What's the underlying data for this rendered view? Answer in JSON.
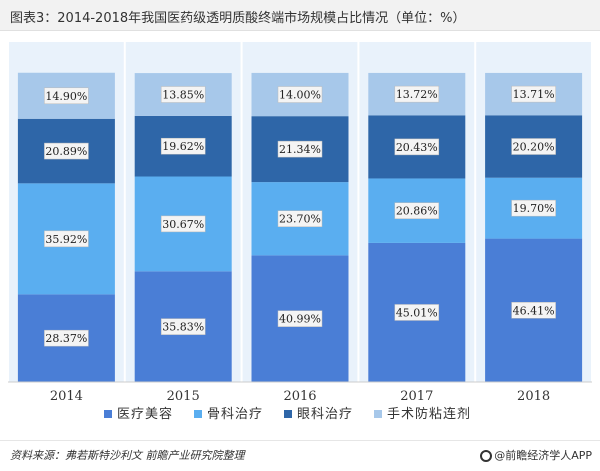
{
  "title": "图表3：2014-2018年我国医药级透明质酸终端市场规模占比情况（单位：%）",
  "source": "资料来源：弗若斯特沙利文 前瞻产业研究院整理",
  "brand": "@前瞻经济学人APP",
  "watermark": "前瞻产业研究院",
  "colors": {
    "医疗美容": "#4a7ed6",
    "骨科治疗": "#5aaef0",
    "眼科治疗": "#2e66a8",
    "手术防粘连剂": "#a7c8ea"
  },
  "chart_data": {
    "type": "bar",
    "stacked": true,
    "percent": true,
    "categories": [
      "2014",
      "2015",
      "2016",
      "2017",
      "2018"
    ],
    "series": [
      {
        "name": "医疗美容",
        "values": [
          28.37,
          35.83,
          40.99,
          45.01,
          46.41
        ]
      },
      {
        "name": "骨科治疗",
        "values": [
          35.92,
          30.67,
          23.7,
          20.86,
          19.7
        ]
      },
      {
        "name": "眼科治疗",
        "values": [
          20.89,
          19.62,
          21.34,
          20.43,
          20.2
        ]
      },
      {
        "name": "手术防粘连剂",
        "values": [
          14.9,
          13.85,
          14.0,
          13.72,
          13.71
        ]
      }
    ],
    "data_labels": [
      [
        "28.37%",
        "35.83%",
        "40.99%",
        "45.01%",
        "46.41%"
      ],
      [
        "35.92%",
        "30.67%",
        "23.70%",
        "20.86%",
        "19.70%"
      ],
      [
        "20.89%",
        "19.62%",
        "21.34%",
        "20.43%",
        "20.20%"
      ],
      [
        "14.90%",
        "13.85%",
        "14.00%",
        "13.72%",
        "13.71%"
      ]
    ],
    "legend_position": "bottom",
    "ylim": [
      0,
      100
    ],
    "grid": false
  }
}
